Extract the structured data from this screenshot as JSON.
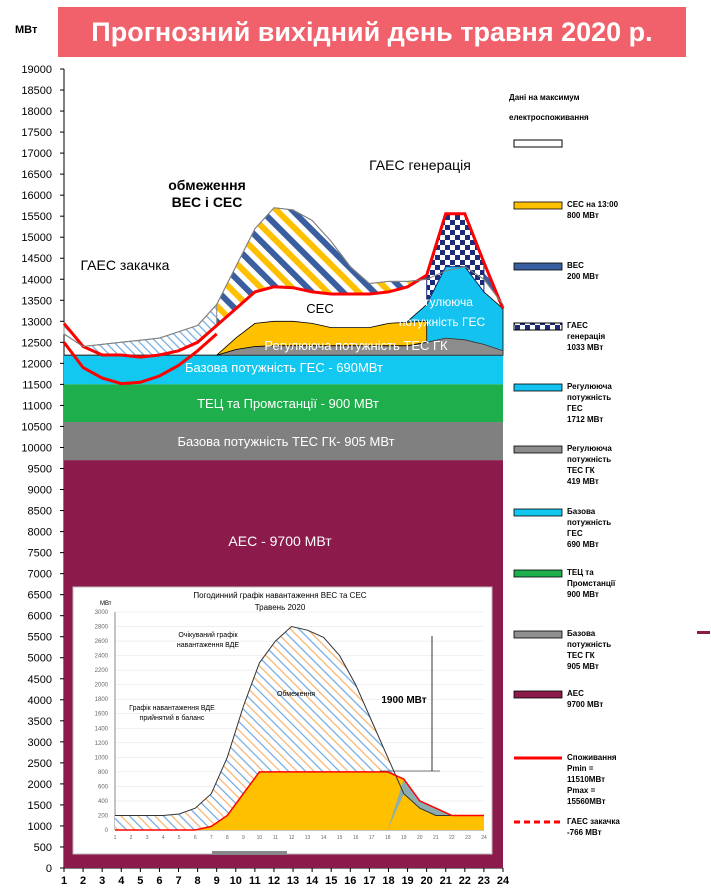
{
  "title": "Прогнозний вихідний день травня 2020 р.",
  "unit": "МВт",
  "chart_data": {
    "type": "area",
    "x": [
      1,
      2,
      3,
      4,
      5,
      6,
      7,
      8,
      9,
      10,
      11,
      12,
      13,
      14,
      15,
      16,
      17,
      18,
      19,
      20,
      21,
      22,
      23,
      24
    ],
    "ylim": [
      0,
      19000
    ],
    "y_ticks": [
      0,
      500,
      1000,
      1500,
      2000,
      2500,
      3000,
      3500,
      4000,
      4500,
      5000,
      5500,
      6000,
      6500,
      7000,
      7500,
      8000,
      8500,
      9000,
      9500,
      10000,
      10500,
      11000,
      11500,
      12000,
      12500,
      13000,
      13500,
      14000,
      14500,
      15000,
      15500,
      16000,
      16500,
      17000,
      17500,
      18000,
      18500,
      19000
    ],
    "layers": [
      {
        "name": "АЕС - 9700 МВт",
        "color": "#8c1a4b",
        "from": 0,
        "to": 9700
      },
      {
        "name": "Базова потужність ТЕС ГК- 905 МВт",
        "color": "#808080",
        "from": 9700,
        "to": 10605
      },
      {
        "name": "ТЕЦ та Промстанції - 900 МВт",
        "color": "#1fae4c",
        "from": 10605,
        "to": 11505
      },
      {
        "name": "Базова потужність ГЕС - 690МВт",
        "color": "#12c8f0",
        "from": 11505,
        "to": 12195
      }
    ],
    "reg_tes": [
      12195,
      12195,
      12195,
      12195,
      12195,
      12195,
      12195,
      12195,
      12195,
      12330,
      12400,
      12420,
      12420,
      12420,
      12420,
      12420,
      12420,
      12420,
      12420,
      12500,
      12600,
      12560,
      12450,
      12300
    ],
    "ces_top": [
      12195,
      12195,
      12195,
      12195,
      12195,
      12195,
      12195,
      12195,
      12195,
      12600,
      12950,
      13000,
      13000,
      12950,
      12850,
      12850,
      12850,
      12950,
      12980,
      13000,
      13000,
      12950,
      12700,
      12420
    ],
    "reg_ges_top": [
      12195,
      12195,
      12195,
      12195,
      12195,
      12195,
      12195,
      12195,
      12195,
      12330,
      12400,
      12420,
      12420,
      12420,
      12420,
      12420,
      12420,
      12420,
      13000,
      13400,
      14300,
      14300,
      13700,
      13300
    ],
    "gaes_gen_top": [
      null,
      null,
      null,
      null,
      null,
      null,
      null,
      null,
      null,
      null,
      null,
      null,
      null,
      null,
      null,
      null,
      null,
      null,
      null,
      null,
      15540,
      15540,
      null,
      null
    ],
    "vde_limit": [
      12700,
      12400,
      12450,
      12500,
      12550,
      12600,
      12750,
      12900,
      13400,
      14300,
      15200,
      15700,
      15650,
      15400,
      14900,
      14300,
      13900,
      13950,
      13950,
      14000,
      14200,
      14300,
      14000,
      13400
    ],
    "consumption": [
      12950,
      12400,
      12200,
      12200,
      12150,
      12200,
      12300,
      12500,
      12900,
      13300,
      13700,
      13820,
      13800,
      13700,
      13650,
      13650,
      13650,
      13700,
      13820,
      14100,
      15560,
      15560,
      14400,
      13300
    ],
    "gaes_pump": [
      12500,
      11900,
      11650,
      11520,
      11550,
      11700,
      11950,
      12300,
      12700,
      null,
      null,
      null,
      null,
      null,
      null,
      null,
      null,
      null,
      null,
      null,
      null,
      null,
      null,
      null
    ]
  },
  "annotations": {
    "limit_vde_ces": "обмеження ВЕС і СЕС",
    "gaes_generation": "ГАЕС генерація",
    "gaes_pump": "ГАЕС закачка",
    "ces": "СЕС",
    "reg_tes": "Регулююча потужність ТЕС ГК",
    "reg_ges": "Регулююча потужність ГЕС",
    "base_ges": "Базова потужність ГЕС - 690МВт",
    "tec": "ТЕЦ та Промстанції - 900 МВт",
    "base_tes": "Базова потужність ТЕС ГК- 905 МВт",
    "aes": "АЕС -  9700 МВт"
  },
  "legend": {
    "header": "Дані на максимум електроспоживання",
    "items": [
      {
        "label": "СЕС на 13:00 800 МВт",
        "color": "#ffc000"
      },
      {
        "label": "ВЕС 200 МВт",
        "color": "#3a5fa0"
      },
      {
        "label": "ГАЕС генерація 1033 МВт",
        "color": "#1c2c7a"
      },
      {
        "label": "Регулююча потужність ГЕС 1712 МВт",
        "color": "#14c2ef"
      },
      {
        "label": "Регулююча потужність ТЕС ГК 419 МВт",
        "color": "#8c8c8c"
      },
      {
        "label": "Базова потужність ГЕС 690 МВт",
        "color": "#12c8f0"
      },
      {
        "label": "ТЕЦ та Промстанції 900 МВт",
        "color": "#1fae4c"
      },
      {
        "label": "Базова потужність ТЕС ГК 905 МВт",
        "color": "#909090"
      },
      {
        "label": "АЕС 9700 МВт",
        "color": "#8c1a4b"
      },
      {
        "label": "Споживання Pmin = 11510МВт Pmax = 15560МВт",
        "color": "#ff0000"
      },
      {
        "label": "ГАЕС закачка -766 МВт",
        "color": "#ff0000"
      }
    ]
  },
  "inset": {
    "title_line1": "Погодинний графік навантаження ВЕС та СЕС",
    "title_line2": "Травень 2020",
    "unit": "МВт",
    "y_ticks": [
      0,
      200,
      400,
      600,
      800,
      1000,
      1200,
      1400,
      1600,
      1800,
      2000,
      2200,
      2400,
      2600,
      2800,
      3000
    ],
    "x_ticks": [
      1,
      2,
      3,
      4,
      5,
      6,
      7,
      8,
      9,
      10,
      11,
      12,
      13,
      14,
      15,
      16,
      17,
      18,
      19,
      20,
      21,
      22,
      23,
      24
    ],
    "expected": [
      200,
      200,
      200,
      200,
      220,
      300,
      500,
      1000,
      1700,
      2300,
      2600,
      2800,
      2750,
      2650,
      2400,
      2000,
      1500,
      1000,
      500,
      300,
      200,
      200,
      200,
      200
    ],
    "accepted": [
      0,
      0,
      0,
      0,
      0,
      0,
      50,
      200,
      500,
      800,
      800,
      800,
      800,
      800,
      800,
      800,
      800,
      800,
      700,
      400,
      300,
      200,
      200,
      200
    ],
    "label_expected": "Очікуваний графік навантаження ВДЕ",
    "label_accepted": "Графік навантаження ВДЕ прийнятий в баланс",
    "label_limit": "Обмеження",
    "label_diff": "1900 МВт"
  }
}
